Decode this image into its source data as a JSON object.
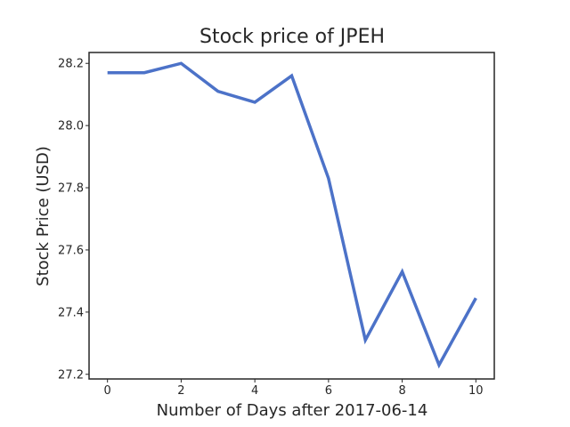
{
  "chart_data": {
    "type": "line",
    "title": "Stock price of JPEH",
    "xlabel": "Number of Days after 2017-06-14",
    "ylabel": "Stock Price (USD)",
    "x": [
      0,
      1,
      2,
      3,
      4,
      5,
      6,
      7,
      8,
      9,
      10
    ],
    "series": [
      {
        "values": [
          28.17,
          28.17,
          28.2,
          28.11,
          28.075,
          28.16,
          27.83,
          27.31,
          27.53,
          27.23,
          27.445
        ],
        "color": "#4c72c8"
      }
    ],
    "xlim": [
      -0.5,
      10.5
    ],
    "ylim": [
      27.185,
      28.235
    ],
    "xticks": [
      0,
      2,
      4,
      6,
      8,
      10
    ],
    "xtick_labels": [
      "0",
      "2",
      "4",
      "6",
      "8",
      "10"
    ],
    "yticks": [
      27.2,
      27.4,
      27.6,
      27.8,
      28.0,
      28.2
    ],
    "ytick_labels": [
      "27.2",
      "27.4",
      "27.6",
      "27.8",
      "28.0",
      "28.2"
    ],
    "grid": false,
    "legend": "none"
  }
}
